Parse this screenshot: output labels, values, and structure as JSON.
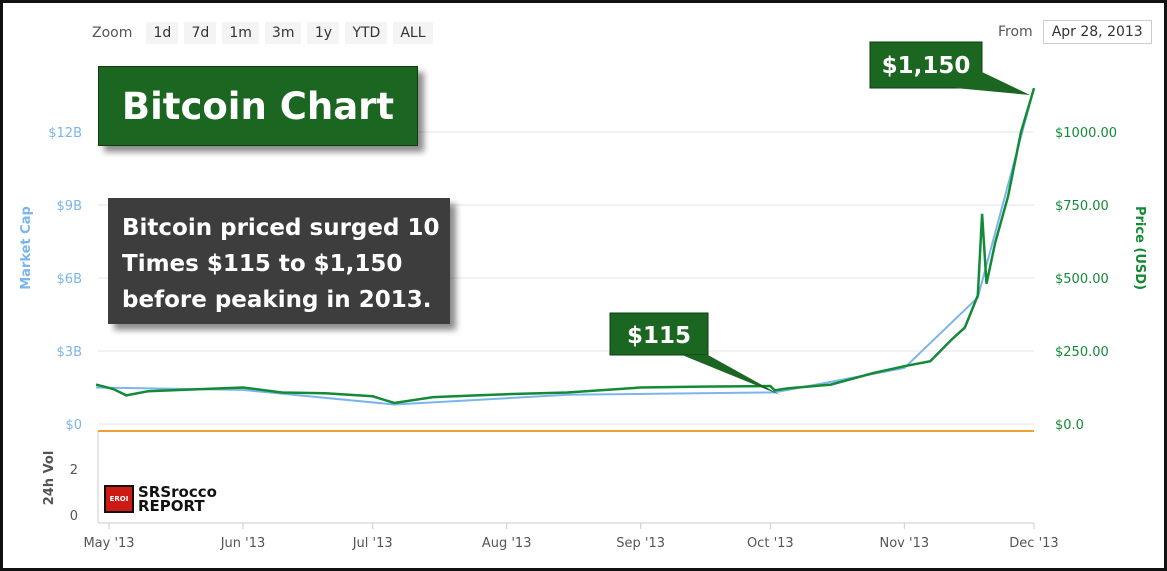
{
  "toolbar": {
    "zoom_label": "Zoom",
    "zoom_options": [
      "1d",
      "7d",
      "1m",
      "3m",
      "1y",
      "YTD",
      "ALL"
    ],
    "from_label": "From",
    "from_value": "Apr 28, 2013"
  },
  "callouts": {
    "title": "Bitcoin Chart",
    "note_lines": [
      "Bitcoin priced surged 10",
      "Times $115 to $1,150",
      "before peaking in 2013."
    ],
    "low_label": "$115",
    "high_label": "$1,150"
  },
  "logo": {
    "mark_text": "EROI",
    "line1": "SRSrocco",
    "line2": "REPORT"
  },
  "colors": {
    "price_line": "#138a36",
    "market_cap_line": "#7cb5ec",
    "callout_green": "#1b6620",
    "note_box": "#3d3d3d",
    "volume_line": "#f0a030"
  },
  "chart_data": {
    "type": "line",
    "x_tick_labels": [
      "May '13",
      "Jun '13",
      "Jul '13",
      "Aug '13",
      "Sep '13",
      "Oct '13",
      "Nov '13",
      "Dec '13"
    ],
    "left_axis": {
      "label": "Market Cap",
      "tick_labels": [
        "$0",
        "$3B",
        "$6B",
        "$9B",
        "$12B"
      ],
      "ylim": [
        0,
        12
      ]
    },
    "right_axis": {
      "label": "Price (USD)",
      "tick_labels": [
        "$0.0",
        "$250.00",
        "$500.00",
        "$750.00",
        "$1000.00"
      ],
      "ylim": [
        0,
        1000
      ]
    },
    "volume_axis": {
      "label": "24h Vol",
      "tick_labels": [
        "0",
        "2"
      ]
    },
    "series": [
      {
        "name": "Price (USD)",
        "x": [
          "2013-04-28",
          "2013-05-02",
          "2013-05-05",
          "2013-05-10",
          "2013-05-20",
          "2013-06-01",
          "2013-06-10",
          "2013-06-20",
          "2013-07-01",
          "2013-07-06",
          "2013-07-15",
          "2013-07-25",
          "2013-08-01",
          "2013-08-15",
          "2013-09-01",
          "2013-09-15",
          "2013-10-01",
          "2013-10-02",
          "2013-10-05",
          "2013-10-15",
          "2013-10-25",
          "2013-11-01",
          "2013-11-07",
          "2013-11-12",
          "2013-11-15",
          "2013-11-18",
          "2013-11-19",
          "2013-11-20",
          "2013-11-22",
          "2013-11-25",
          "2013-11-28",
          "2013-11-30",
          "2013-12-01"
        ],
        "y": [
          135,
          120,
          98,
          112,
          118,
          125,
          108,
          105,
          95,
          72,
          92,
          98,
          102,
          108,
          125,
          128,
          130,
          115,
          122,
          135,
          175,
          198,
          215,
          290,
          330,
          440,
          720,
          480,
          620,
          780,
          1000,
          1100,
          1150
        ]
      },
      {
        "name": "Market Cap",
        "x": [
          "2013-04-28",
          "2013-06-01",
          "2013-07-06",
          "2013-08-15",
          "2013-10-02",
          "2013-11-01",
          "2013-11-18",
          "2013-12-01"
        ],
        "y": [
          1.5,
          1.4,
          0.8,
          1.2,
          1.3,
          2.3,
          5.2,
          13.8
        ]
      }
    ]
  }
}
